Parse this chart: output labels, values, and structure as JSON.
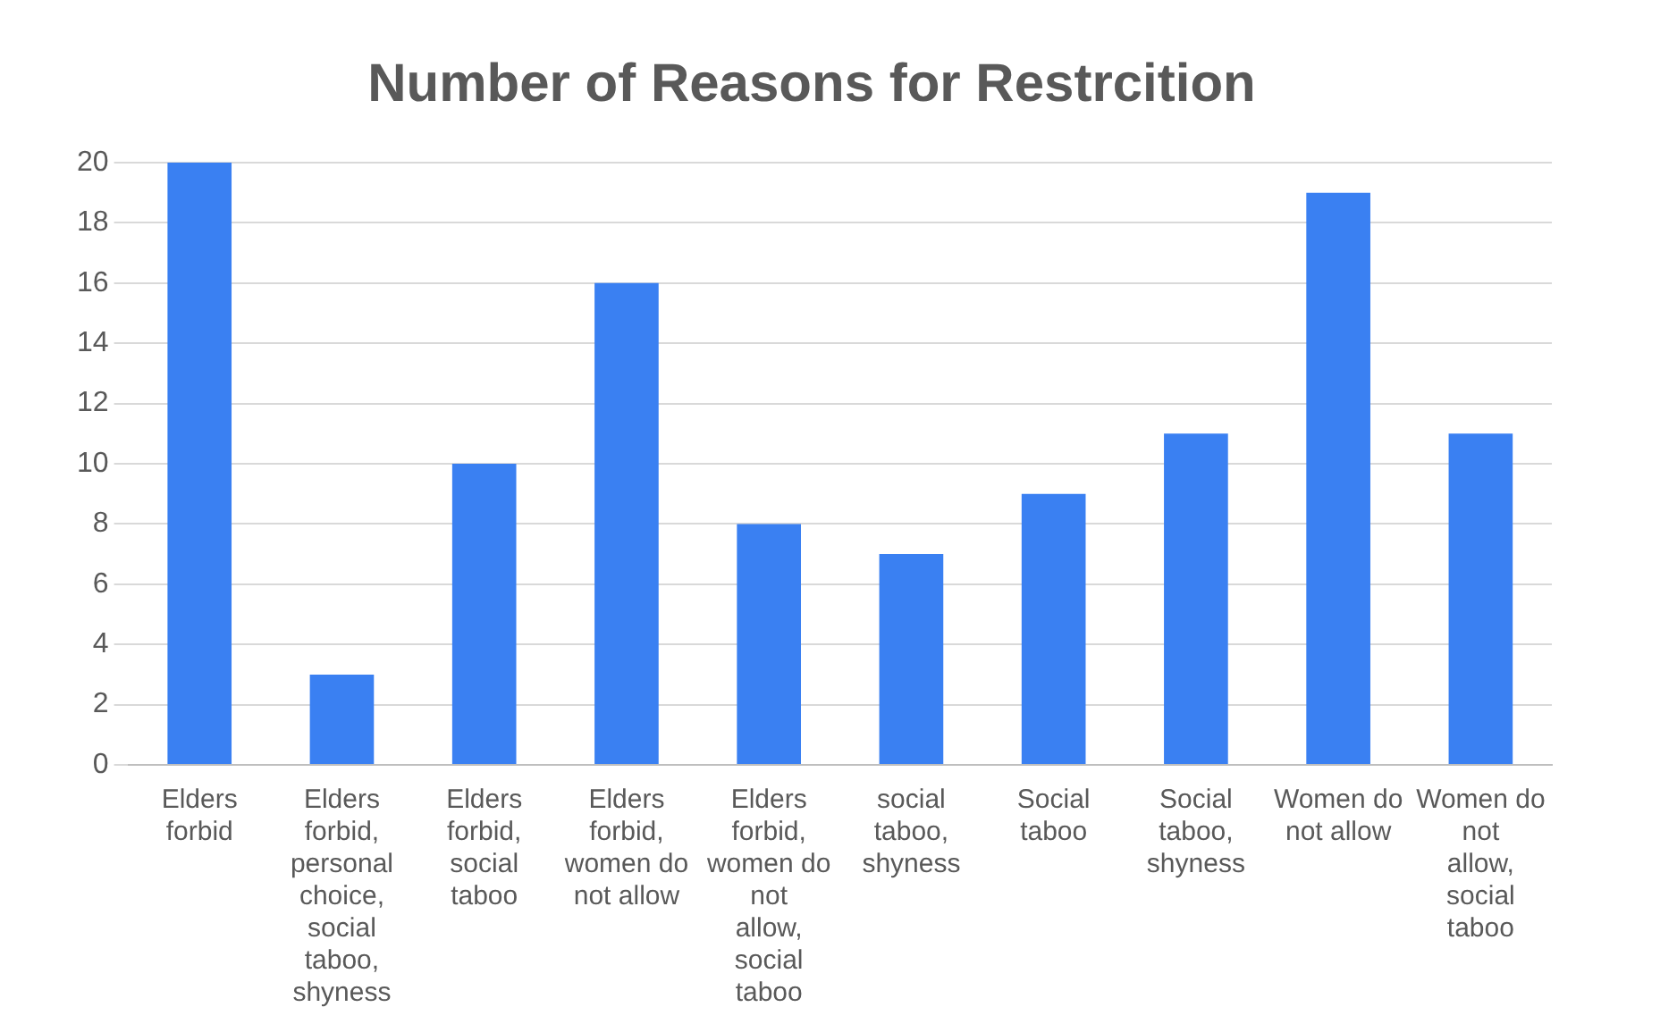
{
  "chart_data": {
    "type": "bar",
    "title": "Number of Reasons for Restrcition",
    "categories": [
      "Elders forbid",
      "Elders forbid, personal choice, social taboo, shyness",
      "Elders forbid, social taboo",
      "Elders forbid, women do not allow",
      "Elders forbid, women do not allow, social taboo",
      "social taboo, shyness",
      "Social taboo",
      "Social taboo, shyness",
      "Women do not allow",
      "Women do not allow, social taboo"
    ],
    "values": [
      20,
      3,
      10,
      16,
      8,
      7,
      9,
      11,
      19,
      11
    ],
    "color": "#3a80f2",
    "ylim": [
      0,
      20
    ],
    "yticks": [
      0,
      2,
      4,
      6,
      8,
      10,
      12,
      14,
      16,
      18,
      20
    ],
    "grid": "y"
  }
}
